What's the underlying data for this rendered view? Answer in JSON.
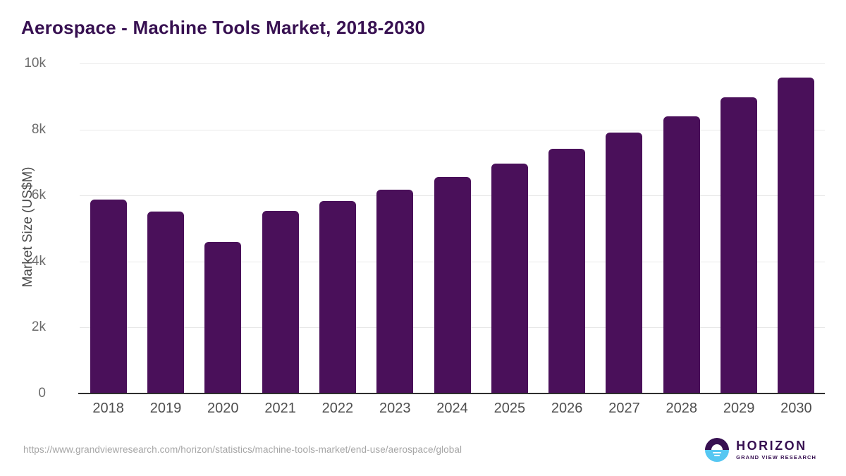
{
  "title": "Aerospace - Machine Tools Market, 2018-2030",
  "chart_data": {
    "type": "bar",
    "categories": [
      "2018",
      "2019",
      "2020",
      "2021",
      "2022",
      "2023",
      "2024",
      "2025",
      "2026",
      "2027",
      "2028",
      "2029",
      "2030"
    ],
    "values": [
      5860,
      5490,
      4570,
      5510,
      5810,
      6150,
      6540,
      6940,
      7390,
      7890,
      8380,
      8950,
      9550
    ],
    "title": "Aerospace - Machine Tools Market, 2018-2030",
    "xlabel": "",
    "ylabel": "Market Size (US$M)",
    "ylim": [
      0,
      10000
    ],
    "ytick_labels": [
      "10k",
      "8k",
      "6k",
      "4k",
      "2k",
      "0"
    ],
    "ytick_values": [
      10000,
      8000,
      6000,
      4000,
      2000,
      0
    ],
    "grid": "horizontal",
    "legend": "none",
    "bar_color": "#4a105a"
  },
  "footer": {
    "source_url": "https://www.grandviewresearch.com/horizon/statistics/machine-tools-market/end-use/aerospace/global",
    "logo_name": "HORIZON",
    "logo_subtitle": "GRAND VIEW RESEARCH"
  },
  "colors": {
    "bar": "#4a105a",
    "title": "#371051",
    "gridline": "#e8e8e8",
    "axis": "#2f2f2f",
    "tick_text": "#6b6b6b",
    "url_text": "#a5a5a5",
    "logo_blue": "#56c7f2",
    "logo_purple": "#371051"
  }
}
